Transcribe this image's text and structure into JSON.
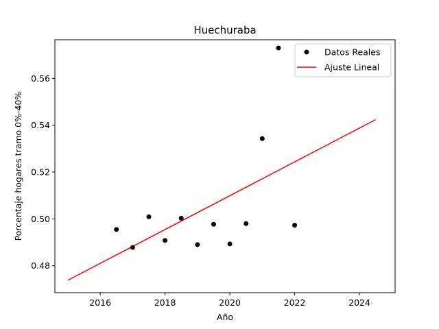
{
  "chart_data": {
    "type": "scatter",
    "title": "Huechuraba",
    "xlabel": "Año",
    "ylabel": "Porcentaje hogares tramo 0%-40%",
    "xlim": [
      2014.6,
      2025.1
    ],
    "ylim": [
      0.4685,
      0.5765
    ],
    "xticks": [
      2016,
      2018,
      2020,
      2022,
      2024
    ],
    "yticks": [
      0.48,
      0.5,
      0.52,
      0.54,
      0.56
    ],
    "grid": false,
    "legend_position": "top-right",
    "series": [
      {
        "name": "Datos Reales",
        "kind": "scatter",
        "color": "#000000",
        "points": [
          {
            "x": 2016.5,
            "y": 0.4955
          },
          {
            "x": 2017.0,
            "y": 0.4878
          },
          {
            "x": 2017.5,
            "y": 0.5009
          },
          {
            "x": 2018.0,
            "y": 0.4908
          },
          {
            "x": 2018.5,
            "y": 0.5003
          },
          {
            "x": 2019.0,
            "y": 0.489
          },
          {
            "x": 2019.5,
            "y": 0.4977
          },
          {
            "x": 2020.0,
            "y": 0.4893
          },
          {
            "x": 2020.5,
            "y": 0.498
          },
          {
            "x": 2021.0,
            "y": 0.5343
          },
          {
            "x": 2021.5,
            "y": 0.573
          },
          {
            "x": 2022.0,
            "y": 0.4973
          }
        ]
      },
      {
        "name": "Ajuste Lineal",
        "kind": "line",
        "color": "#ff0000",
        "points": [
          {
            "x": 2015.0,
            "y": 0.4738
          },
          {
            "x": 2024.5,
            "y": 0.5424
          }
        ]
      }
    ]
  }
}
